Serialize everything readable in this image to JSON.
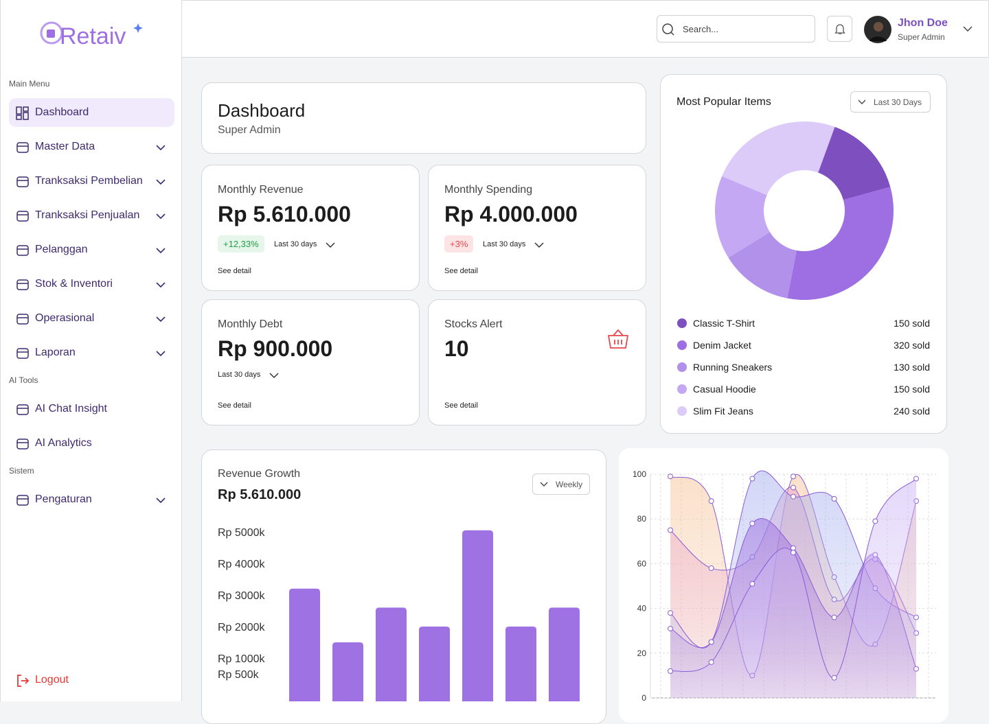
{
  "sidebar": {
    "logo": "Retaiv",
    "sections": [
      {
        "label": "Main Menu",
        "items": [
          "Dashboard",
          "Master Data",
          "Tranksaksi Pembelian",
          "Tranksaksi Penjualan",
          "Pelanggan",
          "Stok & Inventori",
          "Operasional",
          "Laporan"
        ]
      },
      {
        "label": "AI Tools",
        "items": [
          "AI Chat Insight",
          "AI Analytics"
        ]
      },
      {
        "label": "Sistem",
        "items": [
          "Pengaturan"
        ]
      }
    ],
    "logout": "Logout"
  },
  "header": {
    "search_placeholder": "Search...",
    "user_name": "Jhon Doe",
    "user_role": "Super Admin"
  },
  "page_title": {
    "title": "Dashboard",
    "subtitle": "Super Admin"
  },
  "stats": [
    {
      "label": "Monthly Revenue",
      "value": "Rp 5.610.000",
      "change": "+12,33%",
      "period": "Last 30 days",
      "link": "See detail"
    },
    {
      "label": "Monthly Spending",
      "value": "Rp 4.000.000",
      "change": "+3%",
      "period": "Last 30 days",
      "link": "See detail"
    },
    {
      "label": "Monthly Debt",
      "value": "Rp 900.000",
      "period": "Last 30 days",
      "link": "See detail"
    },
    {
      "label": "Stocks Alert",
      "value": "10",
      "link": "See detail"
    }
  ],
  "chart_data": [
    {
      "type": "donut",
      "title": "Most Popular Items",
      "filter": "Last 30 Days",
      "categories": [
        "Classic T-Shirt",
        "Denim Jacket",
        "Running Sneakers",
        "Casual Hoodie",
        "Slim Fit Jeans"
      ],
      "values": [
        150,
        320,
        130,
        150,
        240
      ],
      "value_labels": [
        "150 sold",
        "320 sold",
        "130 sold",
        "150 sold",
        "240 sold"
      ],
      "colors": [
        "#7d4fbf",
        "#9d6fe2",
        "#b291ea",
        "#c5a8f4",
        "#dccbf9"
      ]
    },
    {
      "type": "bar",
      "title": "Revenue Growth",
      "total": "Rp 5.610.000",
      "filter": "Weekly",
      "values": [
        3200,
        1500,
        2600,
        2000,
        5050,
        2000,
        2600
      ],
      "color": "#9f72e3",
      "ylim": [
        0,
        5000
      ],
      "yticks": [
        {
          "value": 5000,
          "label": "Rp 5000k"
        },
        {
          "value": 4000,
          "label": "Rp 4000k"
        },
        {
          "value": 3000,
          "label": "Rp 3000k"
        },
        {
          "value": 2000,
          "label": "Rp 2000k"
        },
        {
          "value": 1000,
          "label": "Rp 1000k"
        },
        {
          "value": 500,
          "label": "Rp 500k"
        }
      ]
    },
    {
      "type": "area",
      "ylim": [
        0,
        100
      ],
      "yticks": [
        0,
        20,
        40,
        60,
        80,
        100
      ],
      "grid": true,
      "series": [
        {
          "color": "#f6c59c",
          "values": [
            99,
            88,
            10,
            99,
            54,
            24,
            88
          ]
        },
        {
          "color": "#eaa8c8",
          "values": [
            75,
            58,
            63,
            94,
            44,
            62,
            29
          ]
        },
        {
          "color": "#a9b2ef",
          "values": [
            38,
            25,
            98,
            90,
            89,
            49,
            36
          ]
        },
        {
          "color": "#9c6fe0",
          "values": [
            31,
            25,
            78,
            67,
            36,
            64,
            13
          ]
        },
        {
          "color": "#cdb6f5",
          "values": [
            12,
            16,
            51,
            65,
            9,
            79,
            98
          ]
        }
      ]
    }
  ]
}
